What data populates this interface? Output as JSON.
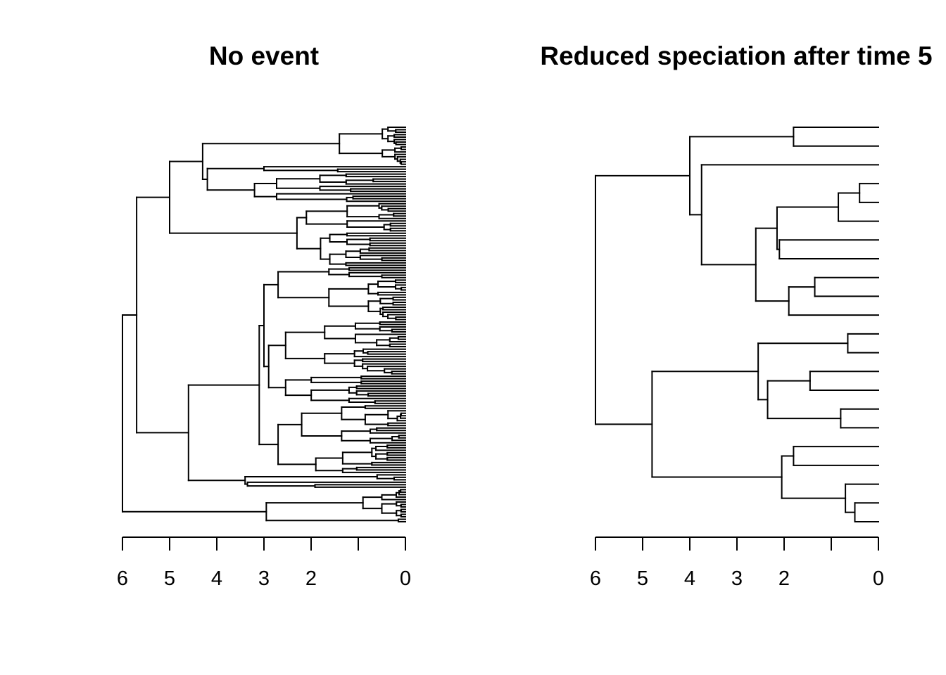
{
  "panels": [
    {
      "title": "No event",
      "axis": {
        "min": 0,
        "max": 6,
        "ticks": [
          6,
          5,
          4,
          3,
          2,
          1,
          0
        ],
        "labels": [
          "6",
          "5",
          "4",
          "3",
          "2",
          "",
          "0"
        ]
      },
      "tree": "((((((((((((((((((((((((((((((((((((((((((((((((((((((((((((((((((((((((((((((((((((((((((((((((((((((((((((((((((((((((((((((((((((((((((((((((((((((((((((((((((((((((((("
    },
    {
      "title": "Reduced speciation after time 5",
      "axis": {
        "min": 0,
        "max": 6,
        "ticks": [
          6,
          5,
          4,
          3,
          2,
          1,
          0
        ],
        "labels": [
          "6",
          "5",
          "4",
          "3",
          "2",
          "",
          "0"
        ]
      },
      "tree": "((((((((((((((((((((((((("
    }
  ]
}
